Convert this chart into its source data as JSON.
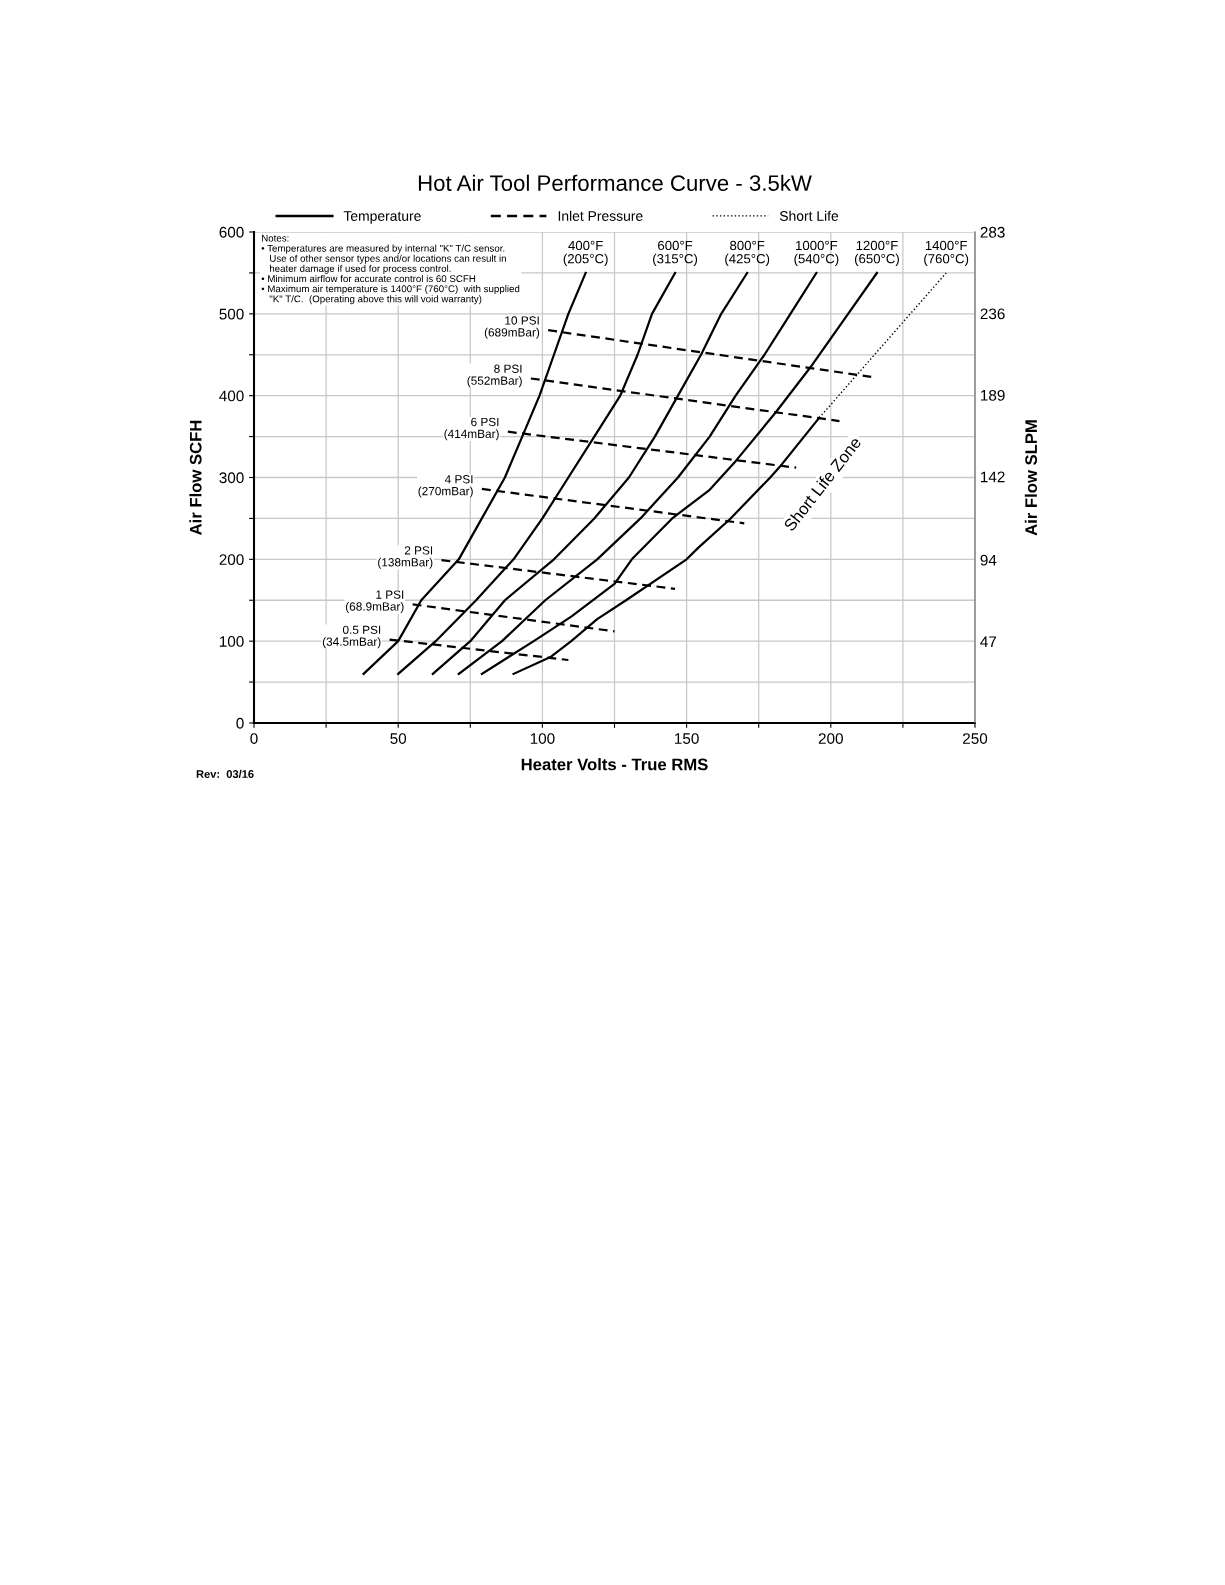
{
  "chart_data": {
    "type": "line",
    "title": "Hot Air Tool Performance Curve - 3.5kW",
    "xlabel": "Heater Volts - True RMS",
    "ylabel": "Air Flow SCFH",
    "y2label": "Air Flow SLPM",
    "xlim": [
      0,
      250
    ],
    "xticks": [
      0,
      {
        "value": 25,
        "label": null
      },
      50,
      {
        "value": 75,
        "label": null
      },
      100,
      {
        "value": 125,
        "label": null
      },
      150,
      {
        "value": 175,
        "label": null
      },
      200,
      {
        "value": 225,
        "label": null
      },
      250
    ],
    "ylim": [
      0,
      600
    ],
    "yticks": [
      0,
      {
        "value": 50,
        "label": null
      },
      100,
      {
        "value": 150,
        "label": null
      },
      200,
      {
        "value": 250,
        "label": null
      },
      300,
      {
        "value": 350,
        "label": null
      },
      400,
      {
        "value": 450,
        "label": null
      },
      500,
      {
        "value": 550,
        "label": null
      },
      600
    ],
    "y2lim": [
      0,
      283
    ],
    "y2ticks": [
      47,
      94,
      142,
      189,
      236,
      283
    ],
    "grid": true,
    "legend": "top left",
    "marker": "none",
    "series": [
      {
        "name": "400°F\n(205°C)",
        "color": "#000000",
        "line_style": "solid",
        "x": [
          38,
          50,
          58,
          71,
          79,
          87,
          93,
          99,
          104,
          109,
          115
        ],
        "values": [
          60,
          100,
          150,
          200,
          250,
          300,
          350,
          400,
          450,
          500,
          550
        ]
      },
      {
        "name": "600°F\n(315°C)",
        "color": "#000000",
        "line_style": "solid",
        "x": [
          50,
          63,
          77,
          90,
          100,
          109,
          118,
          127,
          133,
          138,
          146
        ],
        "values": [
          60,
          100,
          150,
          200,
          250,
          300,
          350,
          400,
          450,
          500,
          550
        ]
      },
      {
        "name": "800°F\n(425°C)",
        "color": "#000000",
        "line_style": "solid",
        "x": [
          62,
          75,
          87,
          104,
          118,
          130,
          139,
          147,
          155,
          162,
          171
        ],
        "values": [
          60,
          100,
          150,
          200,
          250,
          300,
          350,
          400,
          450,
          500,
          550
        ]
      },
      {
        "name": "1000°F\n(540°C)",
        "color": "#000000",
        "line_style": "solid",
        "x": [
          71,
          86,
          101,
          119,
          134,
          147,
          158,
          167,
          177,
          186,
          195
        ],
        "values": [
          60,
          100,
          150,
          200,
          250,
          300,
          350,
          400,
          450,
          500,
          550
        ]
      },
      {
        "name": "1200°F\n(650°C)",
        "color": "#000000",
        "line_style": "solid",
        "x": [
          79,
          97,
          110,
          125,
          131,
          145,
          158,
          167,
          181,
          193,
          206,
          216
        ],
        "values": [
          60,
          100,
          130,
          170,
          200,
          250,
          285,
          320,
          380,
          435,
          500,
          550
        ]
      },
      {
        "color": "#000000",
        "line_style": "solid",
        "x": [
          90,
          103,
          110,
          119,
          129,
          150,
          154,
          165,
          179,
          183,
          196
        ],
        "values": [
          60,
          81,
          100,
          127,
          150,
          200,
          214,
          249,
          300,
          316,
          373
        ]
      },
      {
        "name": "10 PSI\n(689mBar)",
        "color": "#000000",
        "line_style": "dashed",
        "x": [
          102,
          214
        ],
        "values": [
          480,
          423
        ]
      },
      {
        "name": "8 PSI\n(552mBar)",
        "color": "#000000",
        "line_style": "dashed",
        "x": [
          96,
          203
        ],
        "values": [
          421,
          369
        ]
      },
      {
        "name": "6 PSI\n(414mBar)",
        "color": "#000000",
        "line_style": "dashed",
        "x": [
          88,
          188
        ],
        "values": [
          356,
          312
        ]
      },
      {
        "name": "4 PSI\n(270mBar)",
        "color": "#000000",
        "line_style": "dashed",
        "x": [
          79,
          170
        ],
        "values": [
          286,
          244
        ]
      },
      {
        "name": "2 PSI\n(138mBar)",
        "color": "#000000",
        "line_style": "dashed",
        "x": [
          65,
          146
        ],
        "values": [
          199,
          164
        ]
      },
      {
        "name": "1 PSI\n(68.9mBar)",
        "color": "#000000",
        "line_style": "dashed",
        "x": [
          55,
          125
        ],
        "values": [
          145,
          112
        ]
      },
      {
        "name": "0.5 PSI\n(34.5mBar)",
        "color": "#000000",
        "line_style": "dashed",
        "x": [
          47,
          109
        ],
        "values": [
          102,
          77
        ]
      },
      {
        "name": "1400°F\n(760°C)",
        "color": "#000000",
        "line_style": "dotted",
        "x": [
          196,
          240
        ],
        "values": [
          373,
          550
        ]
      }
    ],
    "annotations": [
      "Temperature",
      "Inlet Pressure",
      "Short Life",
      "Notes:\n• Temperatures are measured by internal \"K\" T/C sensor.\n   Use of other sensor types and/or locations can result in\n   heater damage if used for process control.\n• Minimum airflow for accurate control is 60 SCFH\n• Maximum air temperature is 1400°F (760°C)  with supplied\n   \"K\" T/C.  (Operating above this will void warranty)",
      "Rev:  03/16",
      "Short Life Zone"
    ]
  }
}
